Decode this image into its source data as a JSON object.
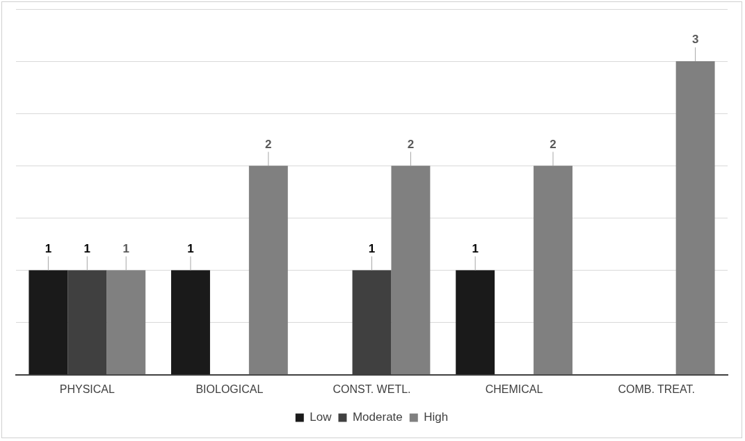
{
  "chart_data": {
    "type": "bar",
    "categories": [
      "PHYSICAL",
      "BIOLOGICAL",
      "CONST. WETL.",
      "CHEMICAL",
      "COMB. TREAT."
    ],
    "series": [
      {
        "name": "Low",
        "color": "#1a1a1a",
        "values": [
          1,
          1,
          null,
          1,
          null
        ]
      },
      {
        "name": "Moderate",
        "color": "#404040",
        "values": [
          1,
          null,
          1,
          null,
          null
        ]
      },
      {
        "name": "High",
        "color": "#808080",
        "values": [
          1,
          2,
          2,
          2,
          3
        ]
      }
    ],
    "ylim": [
      0,
      3.5
    ],
    "yticks": [
      {
        "value": 0,
        "label": null
      },
      {
        "value": 0.5,
        "label": null
      },
      {
        "value": 1,
        "label": null
      },
      {
        "value": 1.5,
        "label": null
      },
      {
        "value": 2,
        "label": null
      },
      {
        "value": 2.5,
        "label": null
      },
      {
        "value": 3,
        "label": null
      },
      {
        "value": 3.5,
        "label": null
      }
    ],
    "tick_labels": "x",
    "grid": "y",
    "legend": "bottom",
    "data_labels": true
  }
}
